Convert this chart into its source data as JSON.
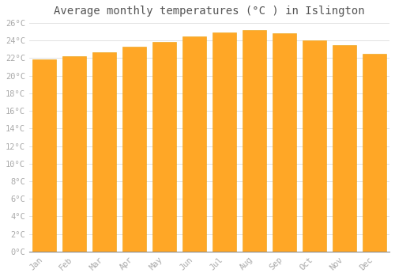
{
  "title": "Average monthly temperatures (°C ) in Islington",
  "months": [
    "Jan",
    "Feb",
    "Mar",
    "Apr",
    "May",
    "Jun",
    "Jul",
    "Aug",
    "Sep",
    "Oct",
    "Nov",
    "Dec"
  ],
  "values": [
    21.9,
    22.2,
    22.7,
    23.3,
    23.8,
    24.5,
    24.9,
    25.2,
    24.8,
    24.0,
    23.5,
    22.5
  ],
  "bar_color": "#FFA726",
  "bar_edge_color": "#E8A010",
  "background_color": "#FFFFFF",
  "grid_color": "#DDDDDD",
  "ylim": [
    0,
    26
  ],
  "ytick_step": 2,
  "title_fontsize": 10,
  "tick_fontsize": 7.5,
  "tick_color": "#AAAAAA",
  "axis_color": "#888888",
  "font_family": "monospace"
}
